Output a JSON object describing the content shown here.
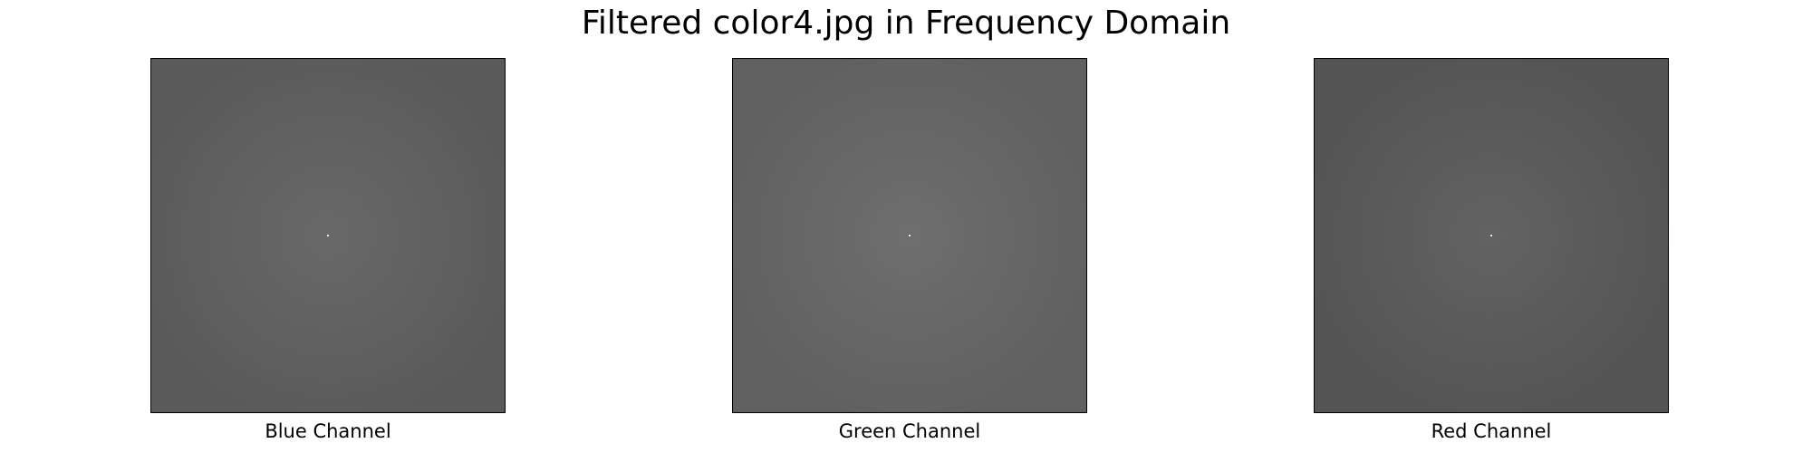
{
  "figure": {
    "title": "Filtered color4.jpg in Frequency Domain"
  },
  "panels": [
    {
      "label": "Blue Channel",
      "base_color": "#5a5a5a",
      "glow_color": "#6a6a6a"
    },
    {
      "label": "Green Channel",
      "base_color": "#606060",
      "glow_color": "#707070"
    },
    {
      "label": "Red Channel",
      "base_color": "#545454",
      "glow_color": "#646464"
    }
  ],
  "colors": {
    "background": "#ffffff",
    "frame": "#000000",
    "center_point": "#eaeaea"
  }
}
